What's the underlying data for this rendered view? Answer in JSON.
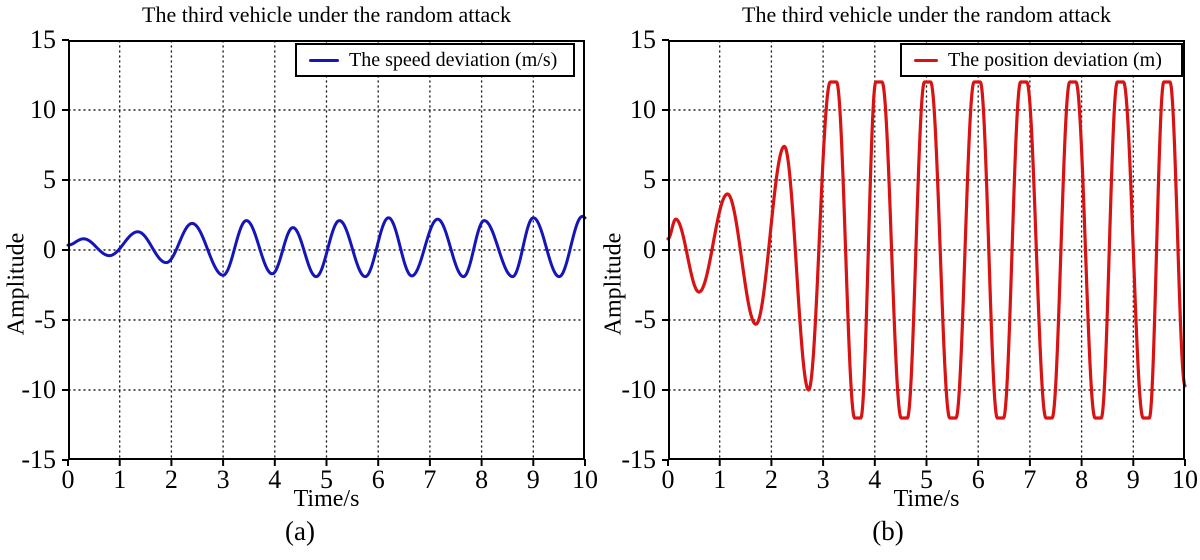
{
  "chart_data": [
    {
      "type": "line",
      "panel": "(a)",
      "title": "The third vehicle under the random attack",
      "xlabel": "Time/s",
      "ylabel": "Amplitude",
      "xlim": [
        0,
        10
      ],
      "ylim": [
        -15,
        15
      ],
      "xticks": [
        0,
        1,
        2,
        3,
        4,
        5,
        6,
        7,
        8,
        9,
        10
      ],
      "yticks": [
        15,
        10,
        5,
        0,
        -5,
        -10,
        -15
      ],
      "grid": "dotted",
      "legend_position": "upper-right",
      "series": [
        {
          "name": "The speed deviation (m/s)",
          "color": "#1515b8",
          "line_width": 3,
          "interpolation": "cosine-through-extrema",
          "extrema": [
            [
              0,
              0.35
            ],
            [
              0.3,
              0.8
            ],
            [
              0.8,
              -0.4
            ],
            [
              1.35,
              1.3
            ],
            [
              1.9,
              -0.9
            ],
            [
              2.4,
              1.9
            ],
            [
              3.0,
              -1.8
            ],
            [
              3.45,
              2.1
            ],
            [
              3.95,
              -1.7
            ],
            [
              4.35,
              1.6
            ],
            [
              4.8,
              -1.9
            ],
            [
              5.25,
              2.1
            ],
            [
              5.75,
              -1.9
            ],
            [
              6.2,
              2.3
            ],
            [
              6.65,
              -1.85
            ],
            [
              7.15,
              2.2
            ],
            [
              7.65,
              -1.9
            ],
            [
              8.05,
              2.1
            ],
            [
              8.6,
              -1.9
            ],
            [
              9.0,
              2.3
            ],
            [
              9.5,
              -1.9
            ],
            [
              9.95,
              2.4
            ],
            [
              10.0,
              2.3
            ]
          ]
        }
      ]
    },
    {
      "type": "line",
      "panel": "(b)",
      "title": "The third vehicle under the random attack",
      "xlabel": "Time/s",
      "ylabel": "Amplitude",
      "xlim": [
        0,
        10
      ],
      "ylim": [
        -15,
        15
      ],
      "xticks": [
        0,
        1,
        2,
        3,
        4,
        5,
        6,
        7,
        8,
        9,
        10
      ],
      "yticks": [
        15,
        10,
        5,
        0,
        -5,
        -10,
        -15
      ],
      "grid": "dotted",
      "legend_position": "upper-right",
      "series": [
        {
          "name": "The position deviation (m)",
          "color": "#d81313",
          "line_width": 3.2,
          "interpolation": "cosine-through-extrema",
          "saturation_limits": [
            -12,
            12
          ],
          "extrema": [
            [
              0,
              0.8
            ],
            [
              0.15,
              2.2
            ],
            [
              0.6,
              -3.0
            ],
            [
              1.15,
              4.0
            ],
            [
              1.7,
              -5.3
            ],
            [
              2.25,
              7.4
            ],
            [
              2.72,
              -10.0
            ],
            [
              3.14,
              12
            ],
            [
              3.26,
              12
            ],
            [
              3.61,
              -12
            ],
            [
              3.73,
              -12
            ],
            [
              4.02,
              12
            ],
            [
              4.14,
              12
            ],
            [
              4.51,
              -12
            ],
            [
              4.63,
              -12
            ],
            [
              4.96,
              12
            ],
            [
              5.08,
              12
            ],
            [
              5.45,
              -12
            ],
            [
              5.57,
              -12
            ],
            [
              5.92,
              12
            ],
            [
              6.04,
              12
            ],
            [
              6.37,
              -12
            ],
            [
              6.49,
              -12
            ],
            [
              6.82,
              12
            ],
            [
              6.94,
              12
            ],
            [
              7.31,
              -12
            ],
            [
              7.43,
              -12
            ],
            [
              7.77,
              12
            ],
            [
              7.89,
              12
            ],
            [
              8.26,
              -12
            ],
            [
              8.38,
              -12
            ],
            [
              8.69,
              12
            ],
            [
              8.81,
              12
            ],
            [
              9.19,
              -12
            ],
            [
              9.31,
              -12
            ],
            [
              9.59,
              12
            ],
            [
              9.71,
              12
            ],
            [
              10.0,
              -9.7
            ]
          ]
        }
      ]
    }
  ]
}
